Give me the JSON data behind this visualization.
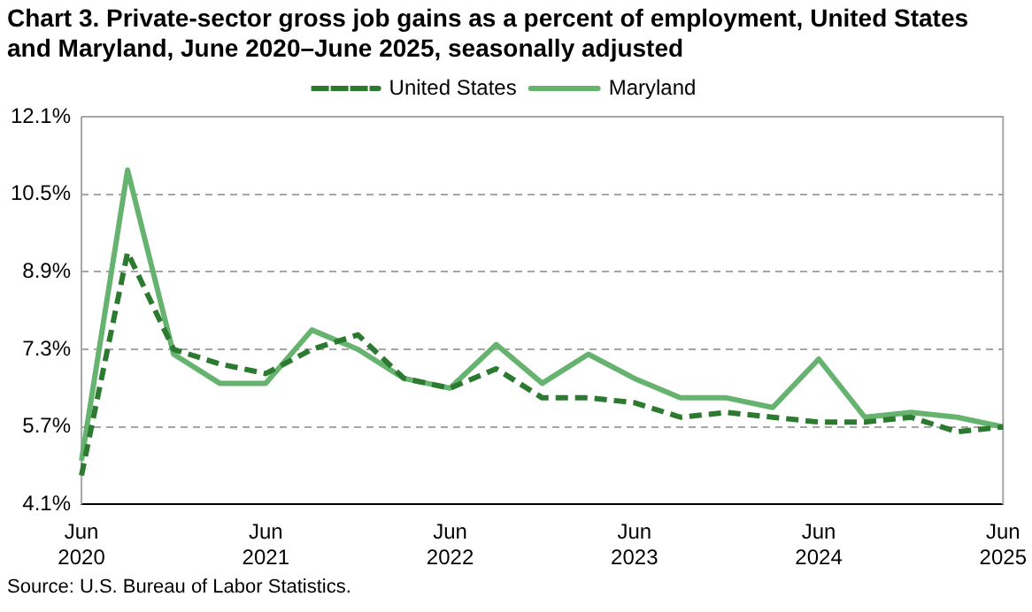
{
  "chart_data": {
    "type": "line",
    "title": "Chart 3. Private-sector gross job gains as a percent of employment, United States and Maryland, June 2020–June 2025, seasonally adjusted",
    "categories": [
      "Jun 2020",
      null,
      null,
      null,
      "Jun 2021",
      null,
      null,
      null,
      "Jun 2022",
      null,
      null,
      null,
      "Jun 2023",
      null,
      null,
      null,
      "Jun 2024",
      null,
      null,
      null,
      "Jun 2025"
    ],
    "series": [
      {
        "name": "United States",
        "color": "#2b7a2f",
        "line_style": "dashed",
        "values": [
          4.7,
          9.3,
          7.3,
          7.0,
          6.8,
          7.3,
          7.6,
          6.7,
          6.5,
          6.9,
          6.3,
          6.3,
          6.2,
          5.9,
          6.0,
          5.9,
          5.8,
          5.8,
          5.9,
          5.6,
          5.7
        ]
      },
      {
        "name": "Maryland",
        "color": "#66b36f",
        "line_style": "solid",
        "values": [
          5.0,
          11.0,
          7.2,
          6.6,
          6.6,
          7.7,
          7.3,
          6.7,
          6.5,
          7.4,
          6.6,
          7.2,
          6.7,
          6.3,
          6.3,
          6.1,
          7.1,
          5.9,
          6.0,
          5.9,
          5.7
        ]
      }
    ],
    "ylim": [
      4.1,
      12.1
    ],
    "yticks": [
      {
        "value": 4.1,
        "label": "4.1%"
      },
      {
        "value": 5.7,
        "label": "5.7%"
      },
      {
        "value": 7.3,
        "label": "7.3%"
      },
      {
        "value": 8.9,
        "label": "8.9%"
      },
      {
        "value": 10.5,
        "label": "10.5%"
      },
      {
        "value": 12.1,
        "label": "12.1%"
      }
    ],
    "grid": "y",
    "legend": "top",
    "marker": "none",
    "annotations": [
      "Source: U.S. Bureau of Labor Statistics."
    ]
  }
}
